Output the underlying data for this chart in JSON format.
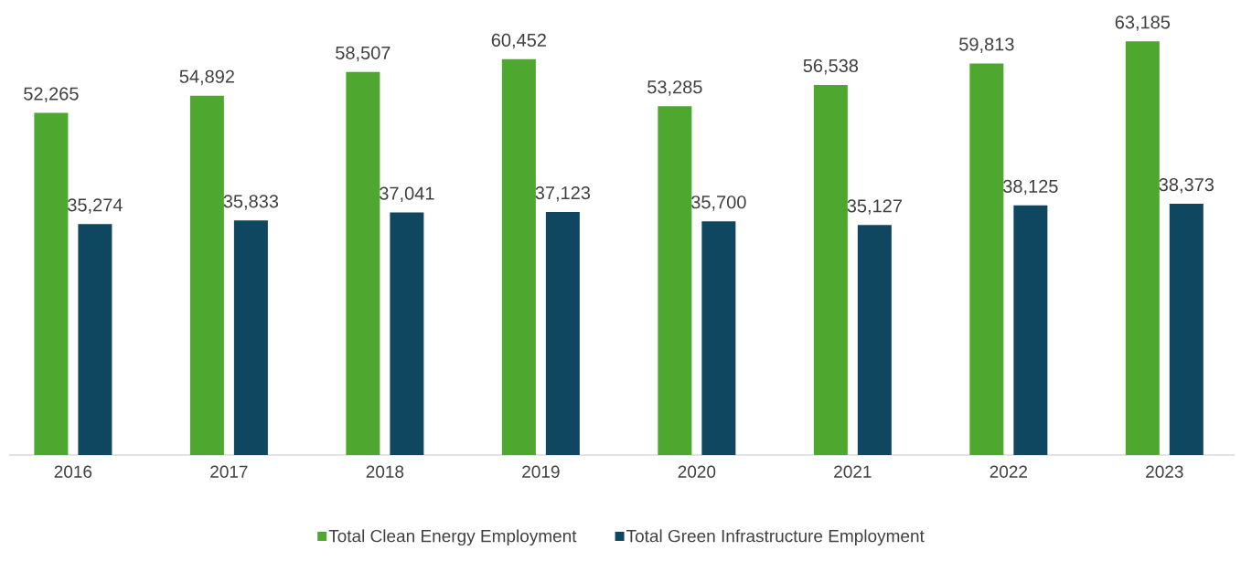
{
  "chart_data": {
    "type": "bar",
    "categories": [
      "2016",
      "2017",
      "2018",
      "2019",
      "2020",
      "2021",
      "2022",
      "2023"
    ],
    "series": [
      {
        "name": "Total Clean Energy Employment",
        "color": "#4ea72e",
        "values": [
          52265,
          54892,
          58507,
          60452,
          53285,
          56538,
          59813,
          63185
        ],
        "value_labels": [
          "52,265",
          "54,892",
          "58,507",
          "60,452",
          "53,285",
          "56,538",
          "59,813",
          "63,185"
        ]
      },
      {
        "name": "Total Green Infrastructure Employment",
        "color": "#0f4761",
        "values": [
          35274,
          35833,
          37041,
          37123,
          35700,
          35127,
          38125,
          38373
        ],
        "value_labels": [
          "35,274",
          "35,833",
          "37,041",
          "37,123",
          "35,700",
          "35,127",
          "38,125",
          "38,373"
        ]
      }
    ],
    "legend": "bottom"
  }
}
